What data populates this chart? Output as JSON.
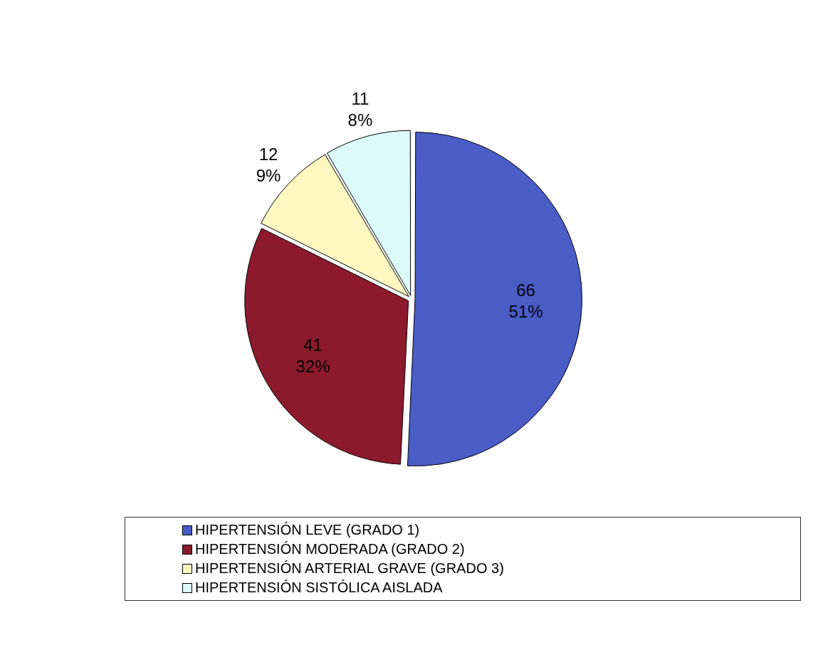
{
  "chart_data": {
    "type": "pie",
    "categories": [
      "HIPERTENSIÓN LEVE  (GRADO 1)",
      "HIPERTENSIÓN MODERADA (GRADO 2)",
      "HIPERTENSIÓN ARTERIAL GRAVE (GRADO 3)",
      "HIPERTENSIÓN SISTÓLICA AISLADA"
    ],
    "values": [
      66,
      41,
      12,
      11
    ],
    "colors": [
      "#4a5cc6",
      "#8c1a2c",
      "#fdf8bf",
      "#dcfafa"
    ],
    "value_labels": [
      "66\n51%",
      "41\n32%",
      "12\n9%",
      "11\n8%"
    ],
    "legend": "bottom"
  }
}
